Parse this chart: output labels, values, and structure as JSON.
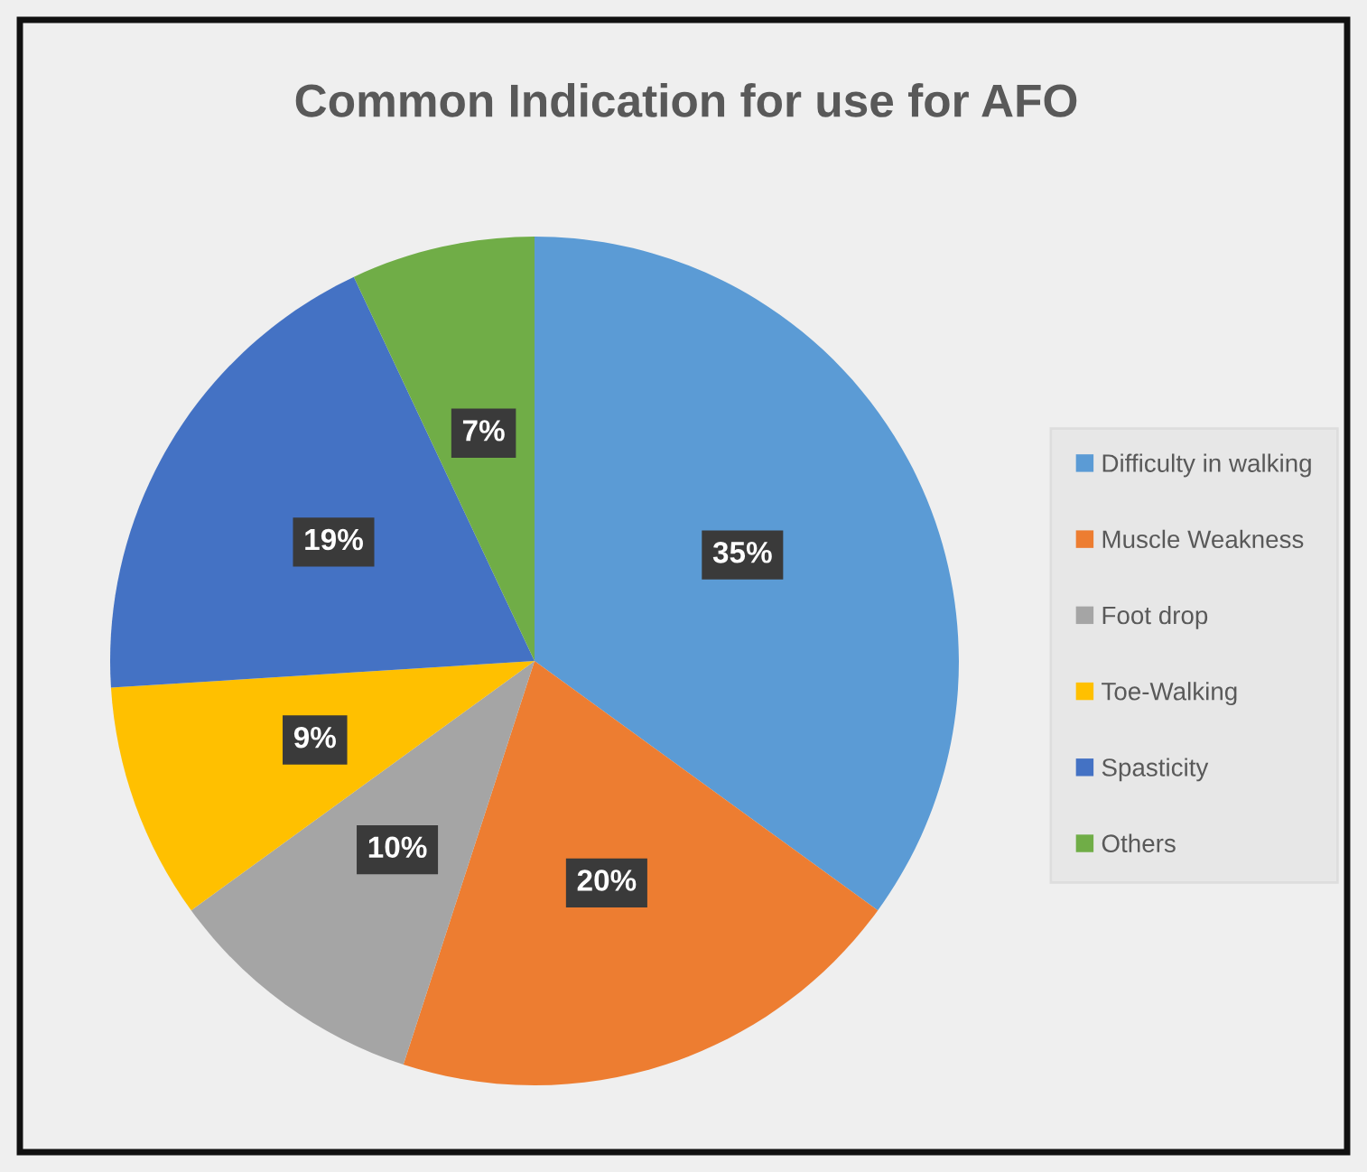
{
  "chart_data": {
    "type": "pie",
    "title": "Common Indication for use for AFO",
    "categories": [
      "Difficulty in walking",
      "Muscle Weakness",
      "Foot drop",
      "Toe-Walking",
      "Spasticity",
      "Others"
    ],
    "values": [
      35,
      20,
      10,
      9,
      19,
      7
    ],
    "colors": [
      "#5b9bd5",
      "#ed7d31",
      "#a5a5a5",
      "#ffc000",
      "#4472c4",
      "#70ad47"
    ],
    "value_labels": [
      "35%",
      "20%",
      "10%",
      "9%",
      "19%",
      "7%"
    ],
    "legend": "right"
  }
}
